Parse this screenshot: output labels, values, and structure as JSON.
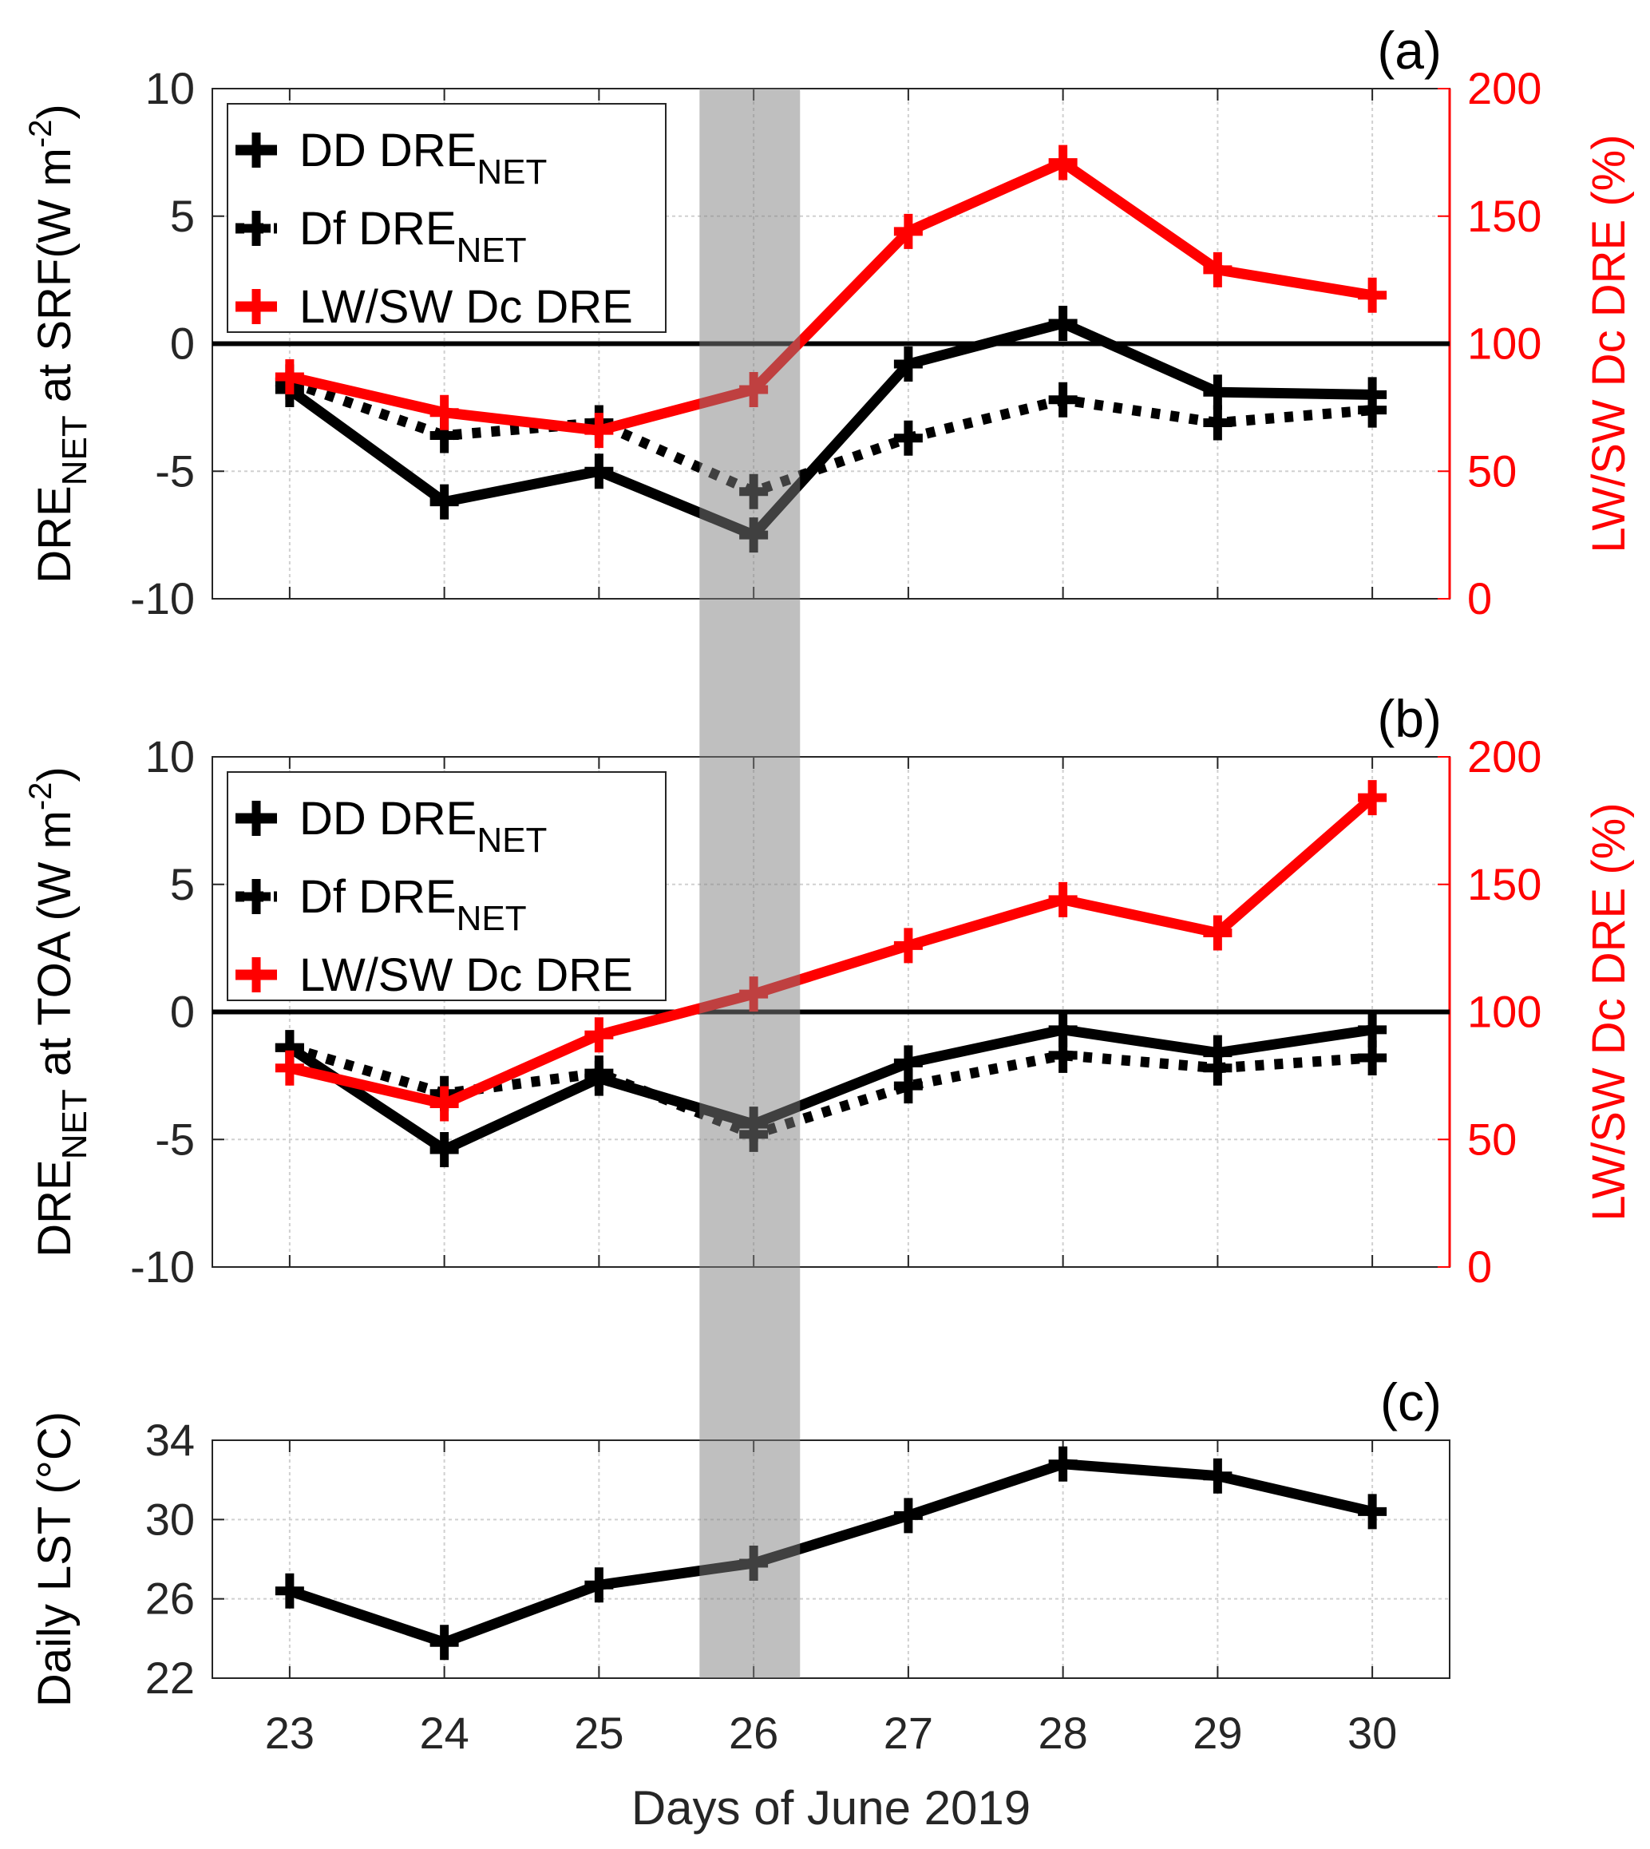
{
  "chart_data": [
    {
      "type": "line",
      "panel_label": "(a)",
      "x": [
        23,
        24,
        25,
        26,
        27,
        28,
        29,
        30
      ],
      "xlim": [
        22.5,
        30.5
      ],
      "ylim": [
        -10,
        10
      ],
      "yticks": [
        10,
        5,
        0,
        -5,
        -10
      ],
      "ylabel": {
        "pre": "DRE",
        "sub": "NET",
        "mid": " at SRF(W m",
        "sup": "-2",
        "end": ")"
      },
      "ylim_right": [
        0,
        200
      ],
      "yticks_right": [
        200,
        150,
        100,
        50,
        0
      ],
      "ylabel_right": "LW/SW Dc DRE (%)",
      "grid": true,
      "legend_position": "top-left",
      "series": [
        {
          "name": "DD DRE",
          "name_sub": "NET",
          "axis": "left",
          "style": "solid",
          "color": "#000000",
          "values": [
            -1.8,
            -6.2,
            -5.0,
            -7.5,
            -0.8,
            0.8,
            -1.9,
            -2.0
          ]
        },
        {
          "name": "Df DRE",
          "name_sub": "NET",
          "axis": "left",
          "style": "dotted",
          "color": "#000000",
          "values": [
            -1.5,
            -3.6,
            -3.1,
            -5.8,
            -3.7,
            -2.2,
            -3.1,
            -2.6
          ]
        },
        {
          "name": "LW/SW Dc DRE",
          "name_sub": "",
          "axis": "right",
          "style": "solid",
          "color": "#ff0000",
          "values": [
            87,
            73,
            66,
            82,
            144,
            171,
            129,
            119
          ]
        }
      ]
    },
    {
      "type": "line",
      "panel_label": "(b)",
      "x": [
        23,
        24,
        25,
        26,
        27,
        28,
        29,
        30
      ],
      "xlim": [
        22.5,
        30.5
      ],
      "ylim": [
        -10,
        10
      ],
      "yticks": [
        10,
        5,
        0,
        -5,
        -10
      ],
      "ylabel": {
        "pre": "DRE",
        "sub": "NET",
        "mid": " at TOA (W m",
        "sup": "-2",
        "end": ")"
      },
      "ylim_right": [
        0,
        200
      ],
      "yticks_right": [
        200,
        150,
        100,
        50,
        0
      ],
      "ylabel_right": "LW/SW Dc DRE (%)",
      "grid": true,
      "legend_position": "top-left",
      "series": [
        {
          "name": "DD DRE",
          "name_sub": "NET",
          "axis": "left",
          "style": "solid",
          "color": "#000000",
          "values": [
            -1.4,
            -5.4,
            -2.6,
            -4.4,
            -2.0,
            -0.7,
            -1.6,
            -0.7
          ]
        },
        {
          "name": "Df DRE",
          "name_sub": "NET",
          "axis": "left",
          "style": "dotted",
          "color": "#000000",
          "values": [
            -1.4,
            -3.2,
            -2.4,
            -4.8,
            -2.9,
            -1.7,
            -2.2,
            -1.8
          ]
        },
        {
          "name": "LW/SW Dc DRE",
          "name_sub": "",
          "axis": "right",
          "style": "solid",
          "color": "#ff0000",
          "values": [
            78,
            64,
            91,
            107,
            126,
            144,
            131,
            184
          ]
        }
      ]
    },
    {
      "type": "line",
      "panel_label": "(c)",
      "x": [
        23,
        24,
        25,
        26,
        27,
        28,
        29,
        30
      ],
      "xlim": [
        22.5,
        30.5
      ],
      "ylim": [
        22,
        34
      ],
      "yticks": [
        34,
        30,
        26,
        22
      ],
      "ylabel": {
        "pre": "Daily LST (°C)",
        "sub": "",
        "mid": "",
        "sup": "",
        "end": ""
      },
      "xticks": [
        "23",
        "24",
        "25",
        "26",
        "27",
        "28",
        "29",
        "30"
      ],
      "xlabel": "Days of June 2019",
      "grid": true,
      "series": [
        {
          "name": "Daily LST",
          "axis": "left",
          "style": "solid",
          "color": "#000000",
          "values": [
            26.4,
            23.8,
            26.7,
            27.8,
            30.2,
            32.8,
            32.2,
            30.4
          ]
        }
      ]
    }
  ],
  "highlight": {
    "x_start": 25.65,
    "x_end": 26.3,
    "color": "#808080"
  },
  "colors": {
    "axis_right": "#ff0000",
    "zero_line": "#000000",
    "grid": "#d0d0d0"
  }
}
